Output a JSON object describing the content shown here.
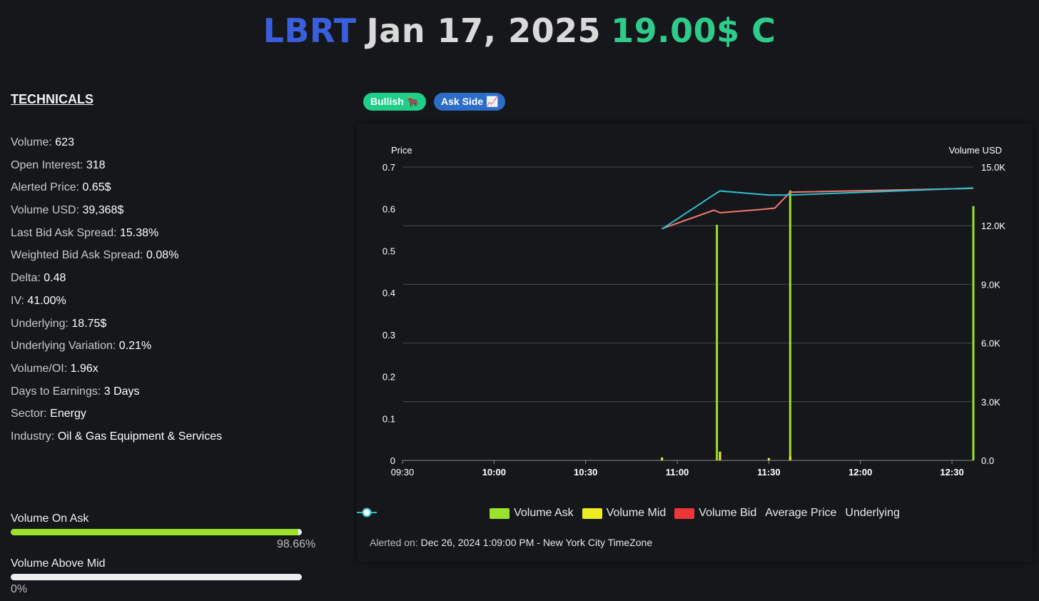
{
  "header": {
    "ticker": "LBRT",
    "expiry": "Jan 17, 2025",
    "strike": "19.00$ C",
    "colors": {
      "ticker": "#3a5fdc",
      "expiry": "#d9d9d9",
      "strike": "#2ecb8a"
    }
  },
  "technicals": {
    "heading": "TECHNICALS",
    "rows": [
      {
        "label": "Volume:",
        "value": "623"
      },
      {
        "label": "Open Interest:",
        "value": "318"
      },
      {
        "label": "Alerted Price:",
        "value": "0.65$"
      },
      {
        "label": "Volume USD:",
        "value": "39,368$"
      },
      {
        "label": "Last Bid Ask Spread:",
        "value": "15.38%"
      },
      {
        "label": "Weighted Bid Ask Spread:",
        "value": "0.08%"
      },
      {
        "label": "Delta:",
        "value": "0.48"
      },
      {
        "label": "IV:",
        "value": "41.00%"
      },
      {
        "label": "Underlying:",
        "value": "18.75$"
      },
      {
        "label": "Underlying Variation:",
        "value": "0.21%"
      },
      {
        "label": "Volume/OI:",
        "value": "1.96x"
      },
      {
        "label": "Days to Earnings:",
        "value": "3 Days"
      },
      {
        "label": "Sector:",
        "value": "Energy"
      },
      {
        "label": "Industry:",
        "value": "Oil & Gas Equipment & Services"
      }
    ]
  },
  "volume_bars": {
    "on_ask": {
      "label": "Volume On Ask",
      "percent_text": "98.66%",
      "fraction": 0.9866
    },
    "above_mid": {
      "label": "Volume Above Mid",
      "percent_text": "0%",
      "fraction": 0
    }
  },
  "badges": {
    "sentiment": "Bullish 🐂",
    "side": "Ask Side 📈"
  },
  "chart_data": {
    "type": "bar+line",
    "left_axis_label": "Price",
    "right_axis_label": "Volume USD",
    "left_ticks": [
      "0",
      "0.1",
      "0.2",
      "0.3",
      "0.4",
      "0.5",
      "0.6",
      "0.7"
    ],
    "left_range": [
      0,
      0.7
    ],
    "right_ticks": [
      "0.0",
      "3.0K",
      "6.0K",
      "9.0K",
      "12.0K",
      "15.0K"
    ],
    "right_range": [
      0,
      15000
    ],
    "x_ticks": [
      "09:30",
      "10:00",
      "10:30",
      "11:00",
      "11:30",
      "12:00",
      "12:30"
    ],
    "x_range_minutes": [
      570,
      757
    ],
    "volume_bars": [
      {
        "minute": 655,
        "kind": "mid",
        "value": 150
      },
      {
        "minute": 673,
        "kind": "ask",
        "value": 12050
      },
      {
        "minute": 674,
        "kind": "mid",
        "value": 450
      },
      {
        "minute": 690,
        "kind": "mid",
        "value": 120
      },
      {
        "minute": 697,
        "kind": "ask",
        "value": 13800
      },
      {
        "minute": 697,
        "kind": "mid",
        "value": 200
      },
      {
        "minute": 757,
        "kind": "ask",
        "value": 13000
      }
    ],
    "average_price": [
      {
        "minute": 655,
        "value": 0.553
      },
      {
        "minute": 672,
        "value": 0.597
      },
      {
        "minute": 674,
        "value": 0.591
      },
      {
        "minute": 688,
        "value": 0.599
      },
      {
        "minute": 692,
        "value": 0.602
      },
      {
        "minute": 697,
        "value": 0.64
      },
      {
        "minute": 757,
        "value": 0.649
      }
    ],
    "underlying": [
      {
        "minute": 655,
        "value": 0.552
      },
      {
        "minute": 672,
        "value": 0.634
      },
      {
        "minute": 674,
        "value": 0.643
      },
      {
        "minute": 690,
        "value": 0.633
      },
      {
        "minute": 697,
        "value": 0.633
      },
      {
        "minute": 757,
        "value": 0.65
      }
    ],
    "legend": [
      {
        "label": "Volume Ask",
        "color": "#9be22d",
        "kind": "box"
      },
      {
        "label": "Volume Mid",
        "color": "#ecec22",
        "kind": "box"
      },
      {
        "label": "Volume Bid",
        "color": "#ee3636",
        "kind": "box"
      },
      {
        "label": "Average Price",
        "color": "#f07a6c",
        "kind": "line"
      },
      {
        "label": "Underlying",
        "color": "#2fbfcf",
        "kind": "line"
      }
    ],
    "colors": {
      "ask": "#9be22d",
      "mid": "#ecec22",
      "bid": "#ee3636",
      "avg": "#f07a6c",
      "underlying": "#2fbfcf",
      "grid": "#4a4b50"
    }
  },
  "alert": {
    "label": "Alerted on:",
    "value": "Dec 26, 2024 1:09:00 PM - New York City TimeZone"
  }
}
